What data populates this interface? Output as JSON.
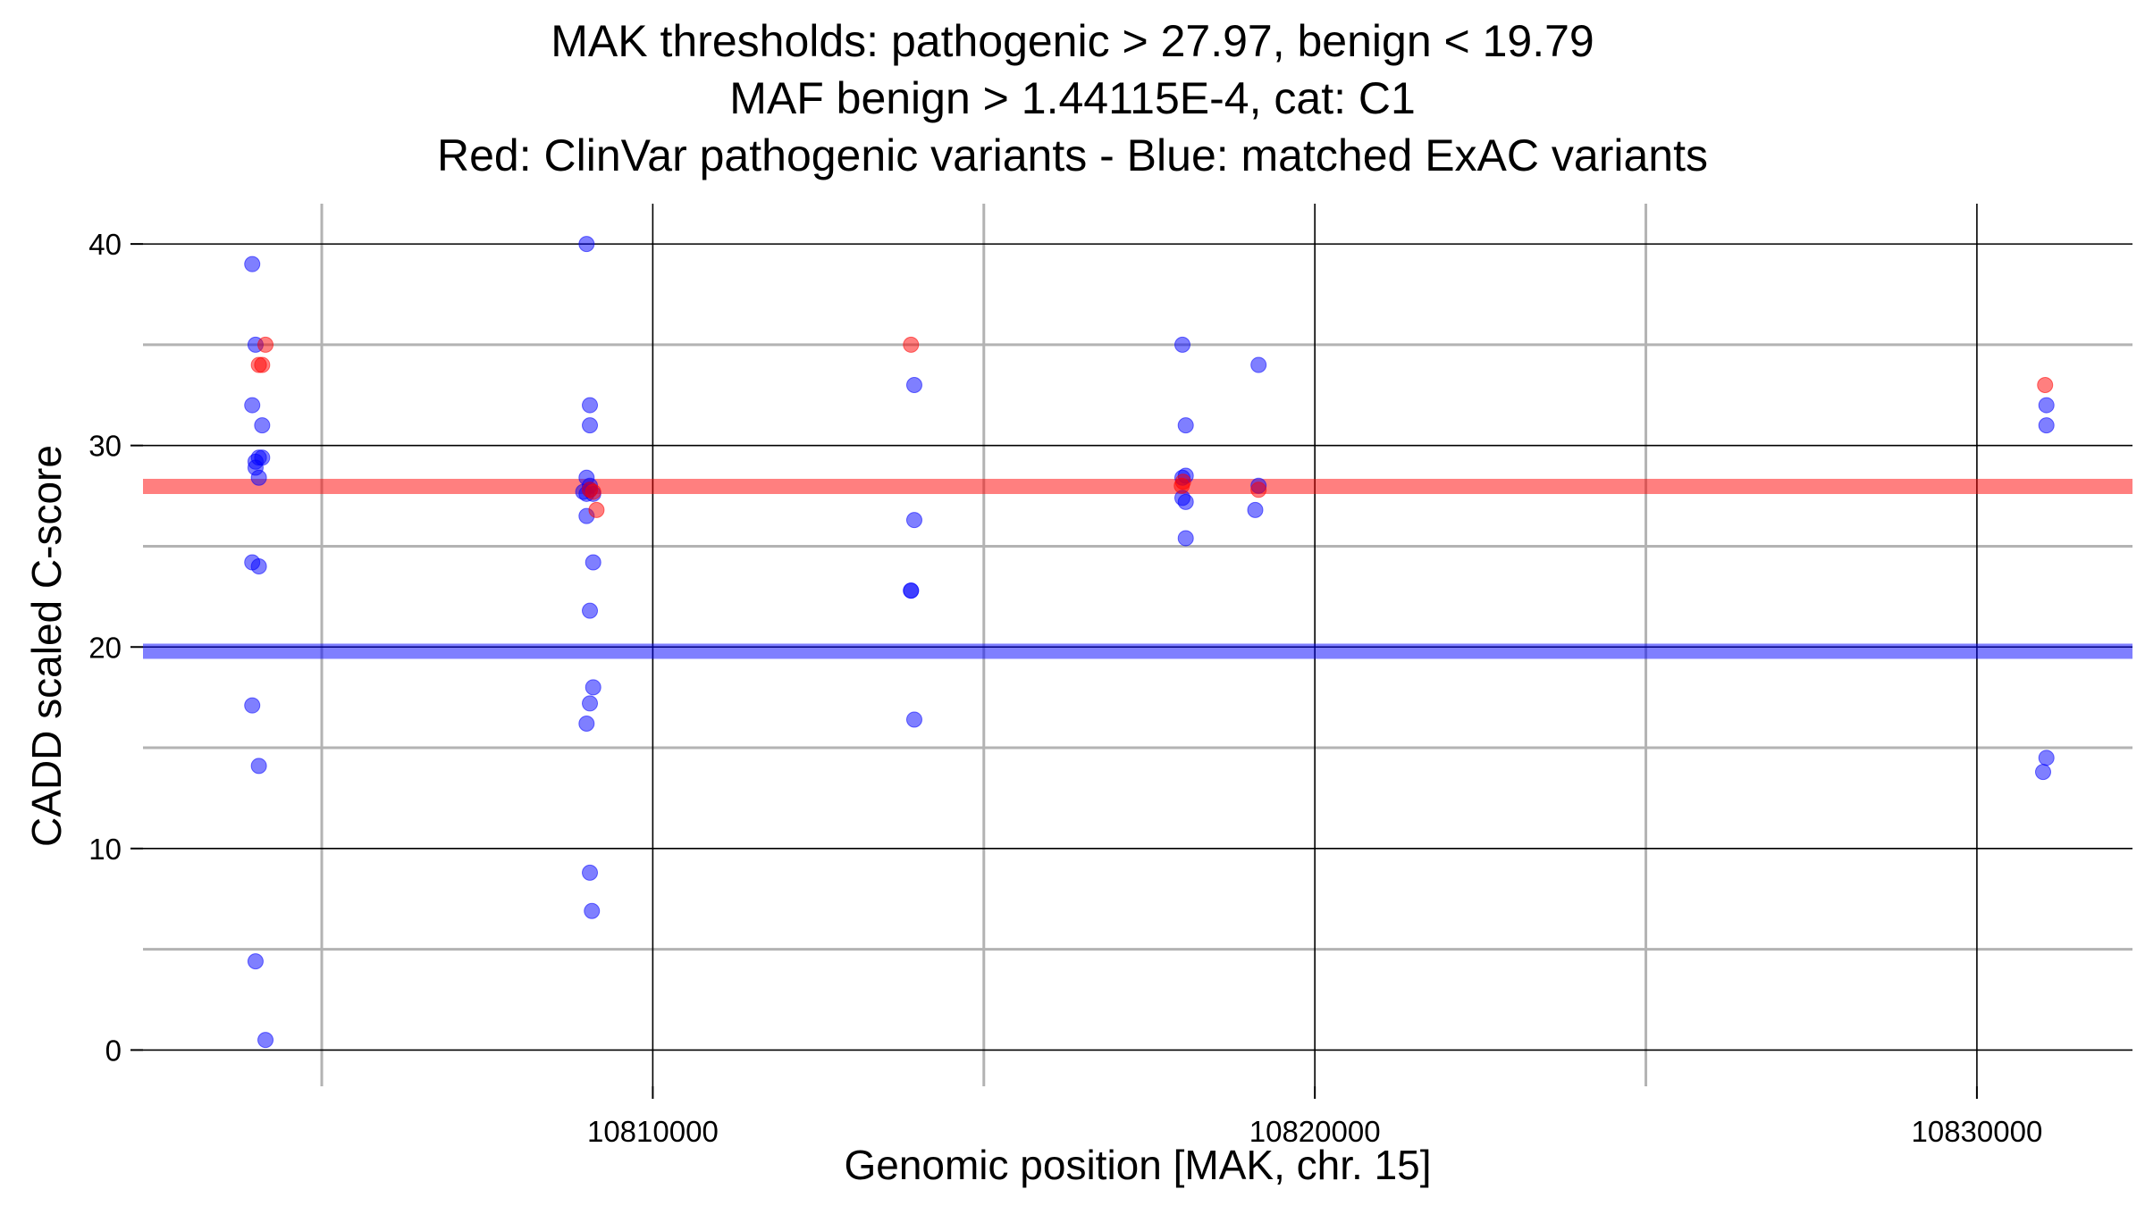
{
  "chart_data": {
    "type": "scatter",
    "title_lines": [
      "MAK thresholds: pathogenic > 27.97, benign < 19.79",
      "MAF benign > 1.44115E-4, cat: C1",
      "Red: ClinVar pathogenic variants - Blue: matched ExAC variants"
    ],
    "xlabel": "Genomic position [MAK, chr. 15]",
    "ylabel": "CADD scaled C-score",
    "xlim": [
      10802300,
      10832350
    ],
    "ylim": [
      -1.8,
      42
    ],
    "x_major_ticks": [
      10810000,
      10820000,
      10830000
    ],
    "x_minor_ticks": [
      10805000,
      10815000,
      10825000
    ],
    "x_tick_labels": [
      "10810000",
      "10820000",
      "10830000"
    ],
    "y_major_ticks": [
      0,
      10,
      20,
      30,
      40
    ],
    "y_minor_ticks": [
      5,
      15,
      25,
      35
    ],
    "y_tick_labels": [
      "0",
      "10",
      "20",
      "30",
      "40"
    ],
    "thresholds": [
      {
        "name": "pathogenic",
        "value": 27.97,
        "color": "#ff0000"
      },
      {
        "name": "benign",
        "value": 19.79,
        "color": "#0000ff"
      }
    ],
    "series": [
      {
        "name": "ClinVar pathogenic variants",
        "color": "#ff0000",
        "x": [
          10804050,
          10804100,
          10804150,
          10813900,
          10817990,
          10818010,
          10809050,
          10809150,
          10809100,
          10819150,
          10831030
        ],
        "y": [
          34,
          34,
          35,
          35,
          28,
          28.2,
          27.8,
          26.8,
          27.7,
          27.8,
          33
        ]
      },
      {
        "name": "matched ExAC variants",
        "color": "#0000ff",
        "x": [
          10803950,
          10803950,
          10804000,
          10804100,
          10804050,
          10804000,
          10804000,
          10804100,
          10804050,
          10803950,
          10804050,
          10803950,
          10804050,
          10804000,
          10804150,
          10809000,
          10809050,
          10809050,
          10809000,
          10809050,
          10809000,
          10809000,
          10809100,
          10809050,
          10809100,
          10809050,
          10809000,
          10809050,
          10809080,
          10808950,
          10809100,
          10809050,
          10813950,
          10813950,
          10813900,
          10813900,
          10813950,
          10818000,
          10818050,
          10818000,
          10818050,
          10818000,
          10818050,
          10818050,
          10819150,
          10819150,
          10819100,
          10831050,
          10831050,
          10831050,
          10831000
        ],
        "y": [
          39,
          32,
          35,
          31,
          29.4,
          29.2,
          28.9,
          29.4,
          28.4,
          24.2,
          24,
          17.1,
          14.1,
          4.4,
          0.5,
          40,
          32,
          31,
          28.4,
          28,
          27.6,
          26.5,
          24.2,
          21.8,
          18,
          17.2,
          16.2,
          8.8,
          6.9,
          27.7,
          27.6,
          27.8,
          33,
          26.3,
          22.8,
          22.8,
          16.4,
          35,
          31,
          28.4,
          28.5,
          27.4,
          27.2,
          25.4,
          34,
          28,
          26.8,
          32,
          31,
          14.5,
          13.8
        ]
      }
    ]
  }
}
